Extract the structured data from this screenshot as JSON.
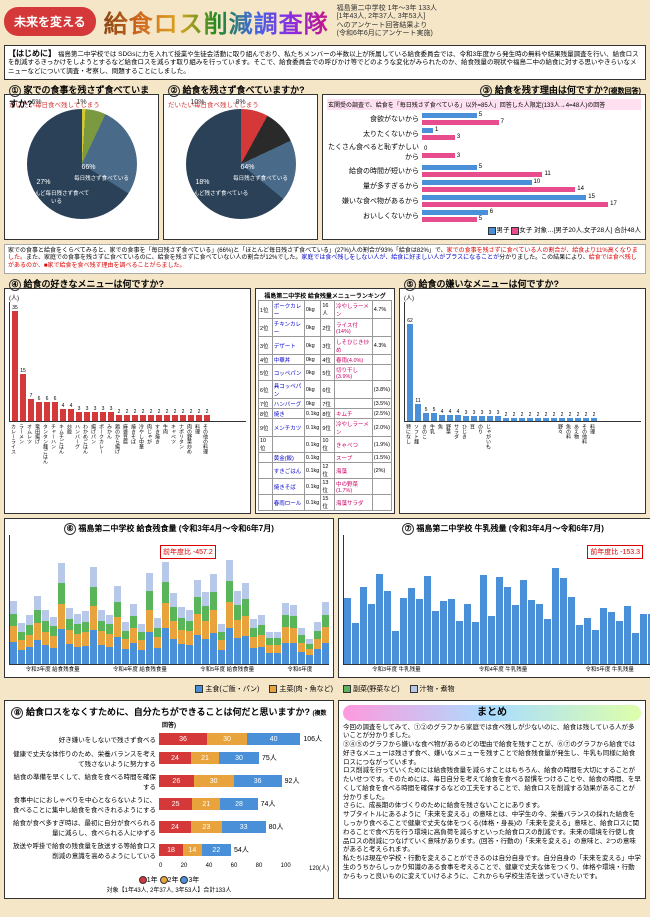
{
  "header": {
    "badge": "未来を変える",
    "title": "給食ロス削減調査隊",
    "sub": "福島第二中学校 1年〜3年 133人\n[1年43人, 2年37人, 3年53人]\nへのアンケート回答結果より\n(令和6年6月にアンケート実施)"
  },
  "intro": {
    "title": "【はじめに】",
    "body": "福島第二中学校では SDGsに力を入れて授業や生徒会活動に取り組んでおり、私たちメンバーの半数以上が所属している給食委員会では、令和3年度から発生時の無料や結果残量調査を行い、給食ロスを削減するきっかけをしようとするなど給食ロスを減らす取り組みを行っています。そこで、給食委員会での呼びかけ等でどのような変化がみられたのか、給食残量の現状や福島二中の給食に対する思いやきらいなメニューなどについて調査・考察し、問題することにしました。"
  },
  "q1": {
    "num": "①",
    "title": "家での食事を残さず食べていますか?",
    "note": "だいたい毎日食べ残してしまう",
    "slices": [
      {
        "label": "1%",
        "color": "#d4c830"
      },
      {
        "label": "6%",
        "color": "#7b9a3f"
      },
      {
        "label": "27%",
        "color": "#4a6a8a",
        "name": "ほとんど毎日残さず食べている"
      },
      {
        "label": "66%",
        "color": "#2a4158",
        "name": "毎日残さず食べている"
      }
    ],
    "angles": [
      0,
      3.6,
      25.2,
      122.4,
      360
    ]
  },
  "q2": {
    "num": "②",
    "title": "給食を残さず食べていますか?",
    "note": "だいたい毎日食べ残してしまう",
    "slices": [
      {
        "label": "8%",
        "color": "#d43838"
      },
      {
        "label": "10%",
        "color": "#2a2a2a"
      },
      {
        "label": "18%",
        "color": "#4a6a8a",
        "name": "ほとんど残さず食べている"
      },
      {
        "label": "64%",
        "color": "#2a4158",
        "name": "毎日残さず食べている"
      }
    ],
    "angles": [
      0,
      28.8,
      64.8,
      129.6,
      360
    ]
  },
  "q3": {
    "num": "③",
    "title": "給食を残す理由は何ですか?",
    "sub": "(複数回答)",
    "note_top": "玄関受の調査で、給食を「毎日残さず食べている」以外=85人」回答した人限定(133人→4=48人)の回答",
    "rows": [
      {
        "label": "食欲がないから",
        "boy": 5,
        "girl": 7
      },
      {
        "label": "太りたくないから",
        "boy": 1,
        "girl": 3
      },
      {
        "label": "たくさん食べると恥ずかしいから",
        "boy": 0,
        "girl": 3
      },
      {
        "label": "給食の時間が短いから",
        "boy": 5,
        "girl": 11
      },
      {
        "label": "量が多すぎるから",
        "boy": 10,
        "girl": 14
      },
      {
        "label": "嫌いな食べ物があるから",
        "boy": 15,
        "girl": 17
      },
      {
        "label": "おいしくないから",
        "boy": 6,
        "girl": 5
      }
    ],
    "xmax": 20,
    "xlabel": "20(人)",
    "legend_boy": "男子",
    "legend_girl": "女子",
    "legend_note": "対象…[男子20人,女子28人] 合計48人",
    "colors": {
      "boy": "#4a90d9",
      "girl": "#e74c8c"
    }
  },
  "q4": {
    "num": "④",
    "title": "給食の好きなメニューは何ですか?",
    "ymax": 35,
    "data": [
      35,
      15,
      7,
      6,
      6,
      6,
      4,
      4,
      3,
      3,
      3,
      3,
      3,
      2,
      2,
      2,
      2,
      2,
      2,
      2,
      2,
      2,
      2,
      2,
      2
    ],
    "labels": [
      "カレーライス",
      "ラーメン",
      "オムレツ",
      "竜田揚げ",
      "タンタン麺ごはん",
      "チャーハン",
      "キムチごはん",
      "炒飯",
      "ハンバーグ",
      "わかめごはん",
      "揚げパン",
      "ポークカレー",
      "みかん",
      "鶏のから揚げ",
      "麻婆豆腐",
      "焼きそば",
      "冷やし中華",
      "肉じゃが",
      "すき焼き",
      "牛肉",
      "キャベツ",
      "ナポリタン",
      "肉の野菜炒め",
      "料理",
      "その他の料理"
    ],
    "color": "#d43838"
  },
  "ranking": {
    "title": "福島第二中学校 給食残量メニューランキング",
    "cols": [
      "",
      "残食量(kg)",
      "少ない",
      "残食量(kg)",
      "多い"
    ],
    "rows": [
      [
        "1位",
        "ポークカレー",
        "0kg",
        "16人",
        "冷やしラーメン",
        "4.7%"
      ],
      [
        "2位",
        "チキンカレー",
        "0kg",
        "2位",
        "ライス付(14%)",
        ""
      ],
      [
        "3位",
        "デザート",
        "0kg",
        "3位",
        "しそひじき炒め",
        "4.3%"
      ],
      [
        "4位",
        "中華丼",
        "0kg",
        "4位",
        "春雨(4.0%)",
        ""
      ],
      [
        "5位",
        "コッペパン",
        "0kg",
        "5位",
        "切り干し(3.9%)",
        ""
      ],
      [
        "6位",
        "具コッペパン",
        "0kg",
        "6位",
        "",
        "(3.8%)"
      ],
      [
        "7位",
        "ハンバーグ",
        "0kg",
        "7位",
        "",
        "(3.5%)"
      ],
      [
        "8位",
        "焼き",
        "0.1kg",
        "8位",
        "キムチ",
        "(2.5%)"
      ],
      [
        "9位",
        "メンチカツ",
        "0.1kg",
        "9位",
        "冷やしラーメン",
        "(2.0%)"
      ],
      [
        "10位",
        "",
        "0.1kg",
        "10位",
        "きゃべつ",
        "(1.9%)"
      ],
      [
        "",
        "黄金(飯)",
        "0.1kg",
        "",
        "スープ",
        "(1.5%)"
      ],
      [
        "",
        "すきごはん",
        "0.1kg",
        "12位",
        "海藻",
        "(2%)"
      ],
      [
        "",
        "焼きそば",
        "0.1kg",
        "13位",
        "中の野菜(1.7%)",
        ""
      ],
      [
        "",
        "春雨ロール",
        "0.1kg",
        "15位",
        "海藻サラダ",
        ""
      ]
    ]
  },
  "q5": {
    "num": "⑤",
    "title": "給食の嫌いなメニューは何ですか?",
    "ymax": 70,
    "ylabels": [
      62,
      40,
      30,
      20,
      11,
      5
    ],
    "data": [
      62,
      11,
      5,
      5,
      4,
      4,
      4,
      3,
      3,
      3,
      3,
      3,
      2,
      2,
      2,
      2,
      2,
      2,
      2,
      2,
      2,
      2,
      2,
      2
    ],
    "labels": [
      "特になし",
      "ソフト麺",
      "きのこ",
      "牛乳",
      "魚",
      "野菜",
      "サラダ",
      "ひじき",
      "豆",
      "のり",
      "じゃがいも",
      "",
      "",
      "",
      "",
      "",
      "",
      "",
      "",
      "野々",
      "魚の料",
      "あえ物",
      "その他料",
      "料理"
    ],
    "color": "#4a90d9"
  },
  "q6": {
    "num": "⑥",
    "title": "福島第二中学校 給食残食量 (令和3年4月〜令和6年7月)",
    "ymax": 500,
    "ylabels": [
      500,
      450,
      400,
      350,
      300,
      250,
      200,
      150,
      100,
      50,
      0
    ],
    "periods": [
      "令和3年度 給食残食量",
      "令和4年度 給食残食量",
      "令和5年度 給食残食量",
      "令和6年度"
    ],
    "delta": "前年度比 -457.2",
    "colors": {
      "主食": "#4a90d9",
      "主菜": "#e8a33d",
      "副菜": "#5ab55a",
      "汁物": "#b8c8e8"
    },
    "legend": [
      "主食(ご飯・パン)",
      "主菜(肉・魚など)",
      "副菜(野菜など)",
      "汁物・煮物"
    ]
  },
  "q7": {
    "num": "⑦",
    "title": "福島第二中学校 牛乳残量 (令和3年4月〜令和6年7月)",
    "ymax": 500,
    "delta": "前年度比 -153.3",
    "periods": [
      "令和3年度 牛乳残量",
      "令和4年度 牛乳残量",
      "令和5年度 牛乳残量"
    ]
  },
  "q8": {
    "num": "⑧",
    "title": "給食ロスをなくすために、自分たちができることは何だと思いますか?",
    "sub": "(複数回答)",
    "rows": [
      {
        "label": "好き嫌いをしないで残さず食べる",
        "segs": [
          36,
          30,
          40
        ],
        "total": "106人"
      },
      {
        "label": "健康で丈夫な体作りのため、栄養バランスを考えて残さないように努力する",
        "segs": [
          24,
          21,
          30
        ],
        "total": "75人"
      },
      {
        "label": "給食の準備を早くして、給食を食べる時間を確保する",
        "segs": [
          26,
          30,
          36
        ],
        "total": "92人"
      },
      {
        "label": "食事中ににおしゃべりを中心とならないように、食べることに集中し給食を食べきれるようにする",
        "segs": [
          25,
          21,
          28
        ],
        "total": "74人"
      },
      {
        "label": "給食が食べ多すぎ時は、最初に自分が食べられる量に減らし、食べられる人にゆずる",
        "segs": [
          24,
          23,
          33
        ],
        "total": "80人"
      },
      {
        "label": "放送や呼掛で給食の残食量を放送する等給食ロス削減の意識を高めるようにしている",
        "segs": [
          18,
          14,
          22
        ],
        "total": "54人"
      }
    ],
    "colors": [
      "#d43838",
      "#e8a33d",
      "#4a90d9"
    ],
    "xmax": 120,
    "xticks": [
      0,
      20,
      40,
      60,
      80,
      100,
      "120(人)"
    ],
    "legend": [
      "1年",
      "2年",
      "3年"
    ],
    "legend_note": "対象【1年43人, 2年37人, 3年53人】合計133人"
  },
  "summary": {
    "title": "まとめ",
    "body": "今回の調査をしてみて、①②のグラフから家庭では食べ残しが少ないのに、給食は残している人が多いことが分かりました。\n③④⑤のグラフから嫌いな食べ物があるのどの理由で給食を残すことが、⑥⑦のグラフから給食では好きなメニューは残さず食べ、嫌いなメニューを残すことで給食残食量が発生し、牛乳も同様に給食ロスにつながっています。\nロス削減を行っていくためには給食残食量を減らすことはもちろん、給食の時間を大切にすることがたいせつです。そのためには、毎日自分を考えて給食を食べる習慣をつけることや、給食の時間、を早くして給食を食べる時間を確保するなどの工夫をすることで、給食ロスを削減する効果があることが分かりました。\nさらに、成長期の体づくりのために給食を残さないことにあります。\nサブタイトルにあるように「未来を変える」の意味とは、中学生の今、栄養バランスの採れた給食をしっかり食べることで健康で丈夫な体をつくる(体格・身長)の「未来を変える」意味と、給食ロスに関わることで食べ方を行う環境に高負荷を減らすといった給食ロスの削減です。未来の環境を行使し食品ロスの削減につなげていく意味があります。(回答・行動の)「未来を変える」の意味と、2つの意味があると考えられます。\n私たちは現在や学校・行動を変えることができるのは自分自身です。自分自身の「未来を変える」中学生のうちからしっかり知識のある食事を考えることで、健康で丈夫な体をつくり、体格や環境・行動からもっと良いものに変えていけるように、これからも学校生活を送っていきたいです。"
  }
}
